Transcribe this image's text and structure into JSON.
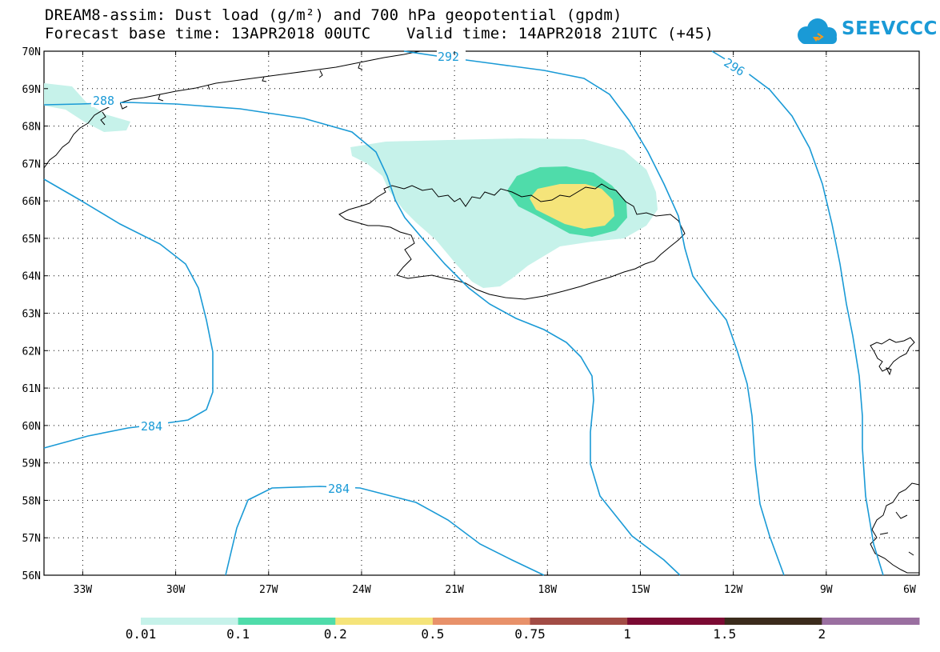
{
  "header": {
    "line1": "DREAM8-assim: Dust load (g/m²) and 700 hPa geopotential (gpdm)",
    "base_time": "Forecast base time: 13APR2018 00UTC",
    "valid_time": "Valid time: 14APR2018 21UTC (+45)"
  },
  "logo": {
    "text": "SEEVCCC",
    "icon": "cloud-logo-icon",
    "color": "#1a9ad6"
  },
  "map": {
    "lat_labels": [
      "70N",
      "69N",
      "68N",
      "67N",
      "66N",
      "65N",
      "64N",
      "63N",
      "62N",
      "61N",
      "60N",
      "59N",
      "58N",
      "57N",
      "56N"
    ],
    "lon_labels": [
      "33W",
      "30W",
      "27W",
      "24W",
      "21W",
      "18W",
      "15W",
      "12W",
      "9W",
      "6W"
    ],
    "contour_labels": {
      "c288": "288",
      "c292": "292",
      "c296": "296",
      "c284a": "284",
      "c284b": "284"
    },
    "contour_color": "#1a9ad6"
  },
  "colorbar": {
    "labels": [
      "0.01",
      "0.1",
      "0.2",
      "0.5",
      "0.75",
      "1",
      "1.5",
      "2"
    ],
    "colors": [
      "#c6f2ea",
      "#4fdcaa",
      "#f5e47a",
      "#e8916a",
      "#a24c45",
      "#7b0a33",
      "#3b2b1c",
      "#9a6fa0"
    ]
  }
}
